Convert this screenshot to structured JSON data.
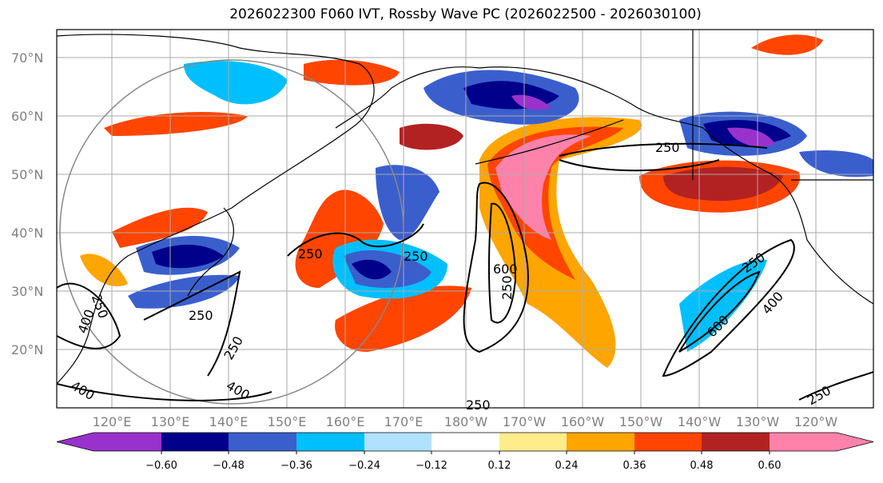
{
  "title": "2026022300 F060 IVT, Rossby Wave PC (2026022500 - 2026030100)",
  "lat_labels": [
    "70°N",
    "60°N",
    "50°N",
    "40°N",
    "30°N",
    "20°N"
  ],
  "lon_labels": [
    "120°E",
    "130°E",
    "140°E",
    "150°E",
    "160°E",
    "170°E",
    "180°W",
    "170°W",
    "160°W",
    "150°W",
    "140°W",
    "130°W",
    "120°W"
  ],
  "contour_labels": [
    "250",
    "250",
    "250",
    "250",
    "250",
    "250",
    "250",
    "250",
    "400",
    "400",
    "400",
    "400",
    "600",
    "600",
    "250",
    "250"
  ],
  "colorbar": {
    "ticks": [
      "−0.60",
      "−0.48",
      "−0.36",
      "−0.24",
      "−0.12",
      "0.12",
      "0.24",
      "0.36",
      "0.48",
      "0.60"
    ],
    "colors": [
      "#9932CC",
      "#00008B",
      "#3A5FCD",
      "#00BFFF",
      "#B0E2FF",
      "#FFFFFF",
      "#FFEC8B",
      "#FFA500",
      "#FF4500",
      "#B22222",
      "#FF82AB"
    ]
  }
}
